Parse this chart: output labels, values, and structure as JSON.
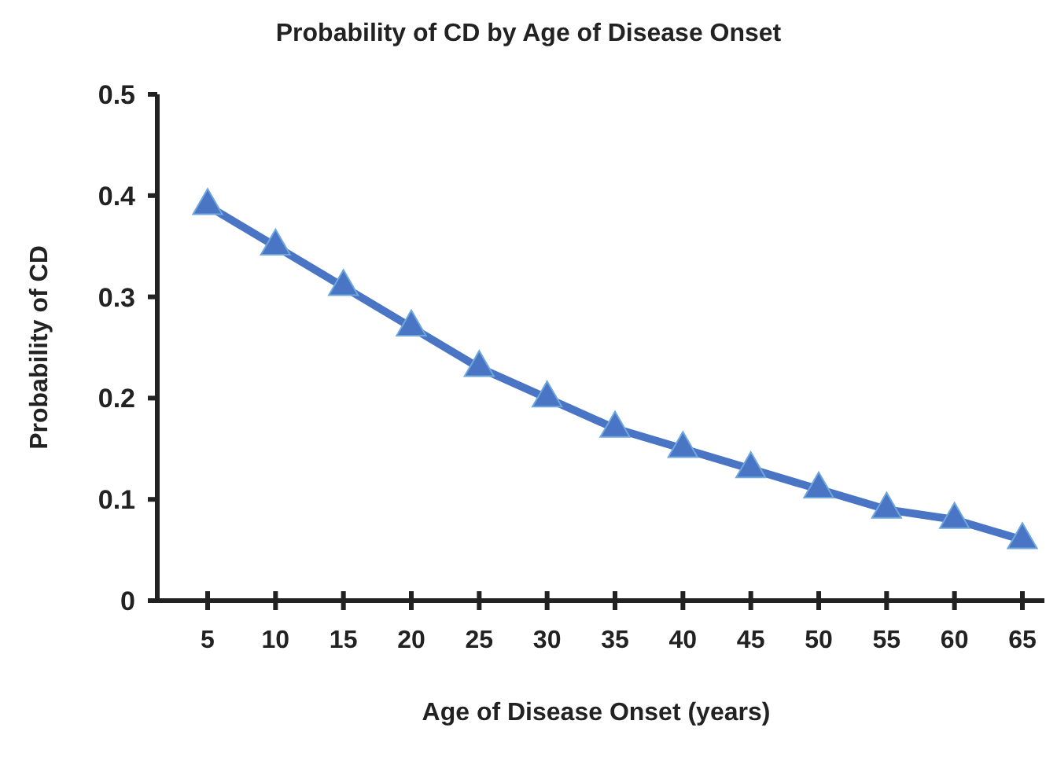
{
  "chart_data": {
    "type": "line",
    "title": "Probability of CD by Age of Disease Onset",
    "xlabel": "Age of Disease Onset (years)",
    "ylabel": "Probability of CD",
    "categories": [
      "5",
      "10",
      "15",
      "20",
      "25",
      "30",
      "35",
      "40",
      "45",
      "50",
      "55",
      "60",
      "65"
    ],
    "series": [
      {
        "color": "#4a74c4",
        "values": [
          0.39,
          0.35,
          0.31,
          0.27,
          0.23,
          0.2,
          0.17,
          0.15,
          0.13,
          0.11,
          0.09,
          0.08,
          0.06
        ]
      }
    ],
    "ylim": [
      0,
      0.5
    ],
    "yticks": [
      {
        "value": 0,
        "label": "0"
      },
      0.1,
      0.2,
      0.3,
      0.4,
      0.5
    ],
    "grid": false,
    "marker": "triangle"
  }
}
